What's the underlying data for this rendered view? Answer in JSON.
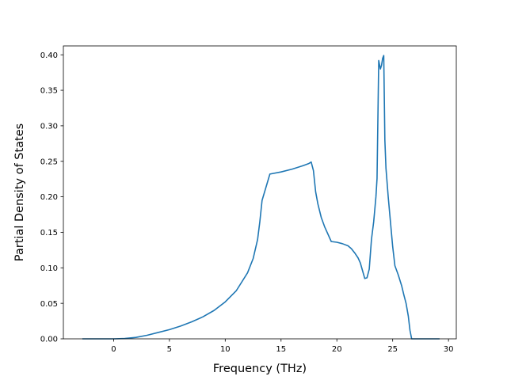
{
  "chart_data": {
    "type": "line",
    "title": "",
    "xlabel": "Frequency (THz)",
    "ylabel": "Partial Density of States",
    "xlim": [
      -4.5,
      30.7
    ],
    "ylim": [
      0.0,
      0.4125
    ],
    "xticks": [
      0,
      5,
      10,
      15,
      20,
      25,
      30
    ],
    "xtick_labels": [
      "0",
      "5",
      "10",
      "15",
      "20",
      "25",
      "30"
    ],
    "yticks": [
      0.0,
      0.05,
      0.1,
      0.15,
      0.2,
      0.25,
      0.3,
      0.35,
      0.4
    ],
    "ytick_labels": [
      "0.00",
      "0.05",
      "0.10",
      "0.15",
      "0.20",
      "0.25",
      "0.30",
      "0.35",
      "0.40"
    ],
    "grid": false,
    "legend": "none",
    "line_color": "#1f77b4",
    "series": [
      {
        "x": [
          -2.8,
          -1.0,
          0.0,
          1.0,
          2.0,
          3.0,
          4.0,
          5.0,
          6.0,
          7.0,
          8.0,
          9.0,
          10.0,
          11.0,
          12.0,
          12.5,
          12.9,
          13.1,
          13.3,
          14.0,
          15.0,
          16.0,
          17.0,
          17.5,
          17.7,
          17.9,
          18.1,
          18.3,
          18.6,
          18.9,
          19.5,
          20.0,
          20.5,
          21.0,
          21.3,
          21.6,
          21.9,
          22.1,
          22.3,
          22.5,
          22.7,
          22.9,
          23.1,
          23.3,
          23.5,
          23.6,
          23.75,
          23.9,
          24.0,
          24.1,
          24.2,
          24.3,
          24.4,
          24.6,
          24.8,
          25.0,
          25.2,
          25.5,
          25.8,
          26.0,
          26.2,
          26.4,
          26.55,
          26.7,
          27.5,
          28.5,
          29.2
        ],
        "y": [
          0.0,
          0.0,
          0.0,
          0.0005,
          0.002,
          0.005,
          0.009,
          0.013,
          0.018,
          0.024,
          0.031,
          0.04,
          0.052,
          0.068,
          0.093,
          0.113,
          0.14,
          0.165,
          0.195,
          0.232,
          0.235,
          0.239,
          0.244,
          0.247,
          0.249,
          0.237,
          0.207,
          0.19,
          0.171,
          0.158,
          0.137,
          0.136,
          0.134,
          0.131,
          0.127,
          0.121,
          0.114,
          0.107,
          0.096,
          0.085,
          0.086,
          0.098,
          0.14,
          0.165,
          0.2,
          0.226,
          0.392,
          0.38,
          0.385,
          0.395,
          0.399,
          0.28,
          0.24,
          0.2,
          0.165,
          0.13,
          0.103,
          0.09,
          0.075,
          0.062,
          0.05,
          0.032,
          0.012,
          0.0,
          0.0,
          0.0,
          0.0
        ]
      }
    ]
  }
}
